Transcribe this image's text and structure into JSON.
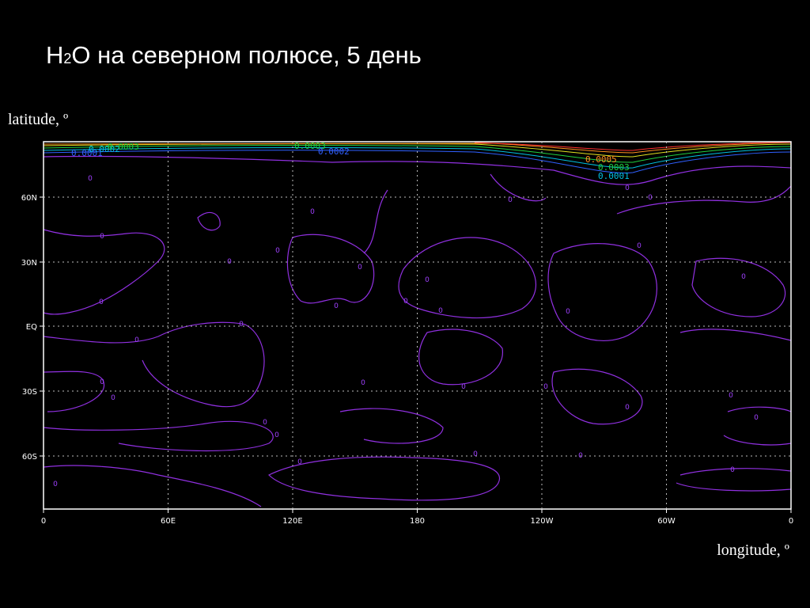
{
  "title": {
    "base": "H",
    "subscript": "2",
    "rest": "O на северном полюсе, 5 день"
  },
  "y_axis_label": "latitude, º",
  "x_axis_label": "longitude, º",
  "x_ticks": [
    "0",
    "60E",
    "120E",
    "180",
    "120W",
    "60W",
    "0"
  ],
  "y_ticks": [
    "60N",
    "30N",
    "EQ",
    "30S",
    "60S"
  ],
  "contour_labels": [
    "0.0001",
    "0.0002",
    "0.0003",
    "0.0003",
    "0.0002",
    "0.0005",
    "0.0003",
    "0.0001"
  ],
  "zero_labels": [
    "0",
    "0",
    "0",
    "0",
    "0",
    "0",
    "0",
    "0",
    "0",
    "0",
    "0",
    "0",
    "0",
    "0",
    "0",
    "0",
    "0",
    "0",
    "0",
    "0",
    "0",
    "0",
    "0",
    "0",
    "0",
    "0",
    "0",
    "0",
    "0",
    "0",
    "0",
    "0",
    "0",
    "0"
  ]
}
